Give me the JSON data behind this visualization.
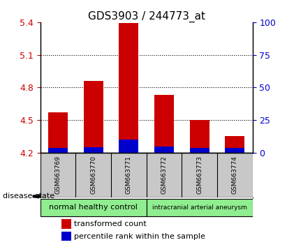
{
  "title": "GDS3903 / 244773_at",
  "samples": [
    "GSM663769",
    "GSM663770",
    "GSM663771",
    "GSM663772",
    "GSM663773",
    "GSM663774"
  ],
  "transformed_count": [
    4.57,
    4.86,
    5.39,
    4.73,
    4.5,
    4.35
  ],
  "percentile_rank_pct": [
    3.5,
    4.0,
    10.0,
    4.5,
    3.5,
    3.5
  ],
  "bar_base": 4.2,
  "ylim_left": [
    4.2,
    5.4
  ],
  "yticks_left": [
    4.2,
    4.5,
    4.8,
    5.1,
    5.4
  ],
  "ylim_right": [
    0,
    100
  ],
  "yticks_right": [
    0,
    25,
    50,
    75,
    100
  ],
  "red_color": "#cc0000",
  "blue_color": "#0000cc",
  "group1_label": "normal healthy control",
  "group2_label": "intracranial arterial aneurysm",
  "group_color": "#90ee90",
  "disease_state_label": "disease state",
  "legend_red_label": "transformed count",
  "legend_blue_label": "percentile rank within the sample",
  "left_tick_color": "#cc0000",
  "right_tick_color": "#0000cc",
  "sample_bg_color": "#c8c8c8",
  "title_fontsize": 11,
  "bar_width": 0.55
}
